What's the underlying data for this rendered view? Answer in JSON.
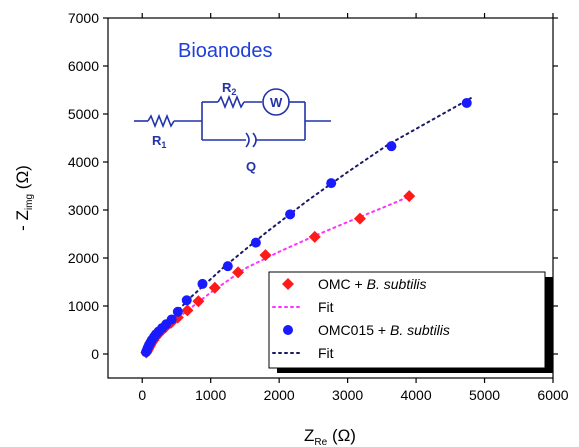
{
  "chart_data": {
    "type": "scatter",
    "xlabel": {
      "main": "Z",
      "sub": "Re",
      "unit": "(Ω)"
    },
    "ylabel": {
      "prefix": "- Z",
      "sub": "img",
      "unit": "(Ω)"
    },
    "xlim": [
      -500,
      6000
    ],
    "ylim": [
      -500,
      7000
    ],
    "xticks": [
      0,
      1000,
      2000,
      3000,
      4000,
      5000,
      6000
    ],
    "yticks": [
      0,
      1000,
      2000,
      3000,
      4000,
      5000,
      6000,
      7000
    ],
    "grid": false,
    "legend_position": "bottom-right",
    "annotation": "Bioanodes",
    "circuit": {
      "labels": [
        "R1",
        "R2",
        "W",
        "Q"
      ],
      "R1": {
        "main": "R",
        "sub": "1"
      },
      "R2": {
        "main": "R",
        "sub": "2"
      },
      "W": "W",
      "Q": "Q"
    },
    "series": [
      {
        "name": "OMC + B. subtilis",
        "name_parts": {
          "plain": "OMC + ",
          "italic": "B. subtilis"
        },
        "kind": "markers",
        "marker": "diamond",
        "color": "#ff1a1a",
        "x": [
          60,
          75,
          90,
          105,
          120,
          140,
          165,
          195,
          230,
          280,
          340,
          420,
          520,
          660,
          820,
          1060,
          1400,
          1800,
          2520,
          3180,
          3900
        ],
        "y": [
          30,
          70,
          110,
          150,
          190,
          240,
          290,
          350,
          410,
          480,
          560,
          650,
          760,
          910,
          1100,
          1380,
          1700,
          2060,
          2440,
          2820,
          3290
        ]
      },
      {
        "name": "Fit",
        "kind": "dotted-line",
        "color": "#ff33ff",
        "x": [
          60,
          200,
          500,
          1000,
          1500,
          2000,
          2500,
          3000,
          3500,
          3900,
          4000
        ],
        "y": [
          30,
          350,
          730,
          1280,
          1780,
          2130,
          2450,
          2750,
          3040,
          3280,
          3330
        ]
      },
      {
        "name": "OMC015 + B. subtilis",
        "name_parts": {
          "plain": "OMC015 + ",
          "italic": "B. subtilis"
        },
        "kind": "markers",
        "marker": "circle",
        "color": "#1a1aff",
        "x": [
          55,
          70,
          85,
          100,
          120,
          140,
          170,
          200,
          240,
          290,
          350,
          430,
          520,
          650,
          880,
          1250,
          1660,
          2160,
          2760,
          3640,
          4740
        ],
        "y": [
          40,
          90,
          140,
          190,
          240,
          290,
          350,
          410,
          470,
          540,
          620,
          720,
          880,
          1120,
          1460,
          1830,
          2320,
          2910,
          3560,
          4330,
          5230
        ]
      },
      {
        "name": "Fit",
        "kind": "dotted-line",
        "color": "#1a1a66",
        "x": [
          55,
          300,
          700,
          1200,
          1800,
          2400,
          3000,
          3600,
          4200,
          4800
        ],
        "y": [
          40,
          570,
          1170,
          1820,
          2520,
          3180,
          3790,
          4370,
          4850,
          5330
        ]
      }
    ]
  }
}
